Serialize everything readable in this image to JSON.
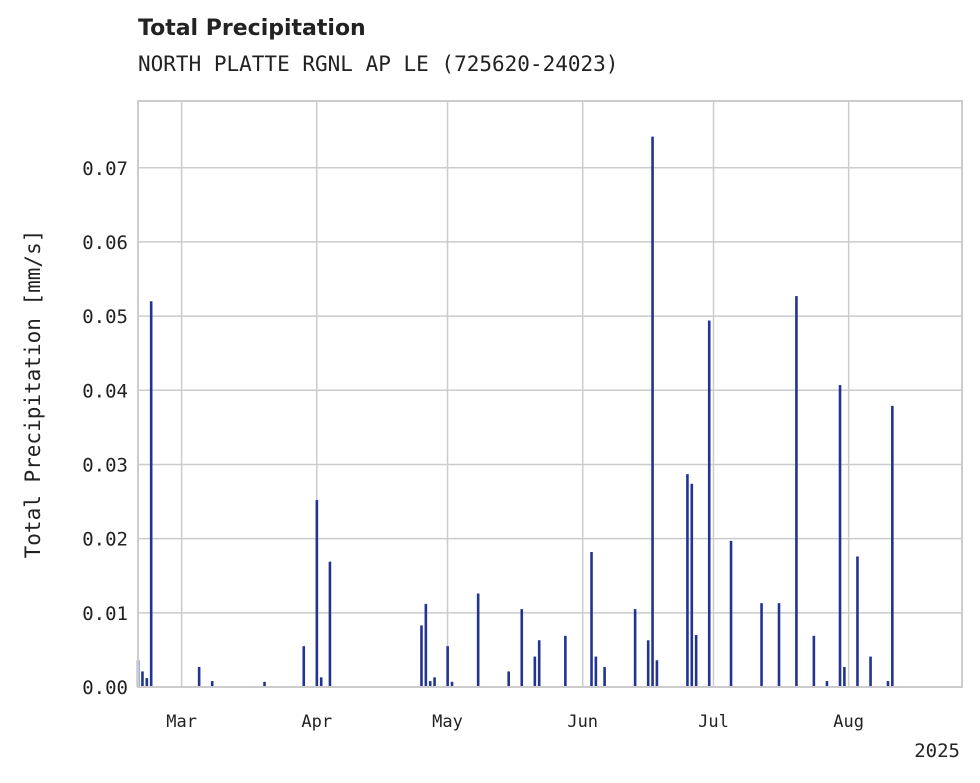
{
  "chart_data": {
    "type": "bar",
    "title": "Total Precipitation",
    "subtitle": "NORTH PLATTE RGNL AP LE (725620-24023)",
    "ylabel": "Total Precipitation [mm/s]",
    "xlabel": "",
    "year_label": "2025",
    "ylim": [
      0,
      0.079
    ],
    "yticks": [
      "0.00",
      "0.01",
      "0.02",
      "0.03",
      "0.04",
      "0.05",
      "0.06",
      "0.07"
    ],
    "xlim": [
      "2025-02-19",
      "2025-08-27"
    ],
    "xticks": [
      {
        "label": "Mar",
        "date": "2025-03-01"
      },
      {
        "label": "Apr",
        "date": "2025-04-01"
      },
      {
        "label": "May",
        "date": "2025-05-01"
      },
      {
        "label": "Jun",
        "date": "2025-06-01"
      },
      {
        "label": "Jul",
        "date": "2025-07-01"
      },
      {
        "label": "Aug",
        "date": "2025-08-01"
      }
    ],
    "grid": true,
    "color": "#233392",
    "x": [
      "2025-02-19",
      "2025-02-20",
      "2025-02-21",
      "2025-02-22",
      "2025-03-05",
      "2025-03-08",
      "2025-03-20",
      "2025-03-29",
      "2025-04-01",
      "2025-04-02",
      "2025-04-04",
      "2025-04-25",
      "2025-04-26",
      "2025-04-27",
      "2025-04-28",
      "2025-05-01",
      "2025-05-02",
      "2025-05-08",
      "2025-05-15",
      "2025-05-18",
      "2025-05-21",
      "2025-05-22",
      "2025-05-28",
      "2025-06-03",
      "2025-06-04",
      "2025-06-06",
      "2025-06-13",
      "2025-06-16",
      "2025-06-17",
      "2025-06-18",
      "2025-06-25",
      "2025-06-26",
      "2025-06-27",
      "2025-06-30",
      "2025-07-05",
      "2025-07-12",
      "2025-07-16",
      "2025-07-20",
      "2025-07-24",
      "2025-07-27",
      "2025-07-30",
      "2025-07-31",
      "2025-08-03",
      "2025-08-06",
      "2025-08-10",
      "2025-08-11"
    ],
    "values": [
      0.0036,
      0.0021,
      0.0012,
      0.052,
      0.0027,
      0.0008,
      0.0007,
      0.0055,
      0.0252,
      0.0013,
      0.0169,
      0.0083,
      0.0112,
      0.0008,
      0.0013,
      0.0055,
      0.0007,
      0.0126,
      0.0021,
      0.0105,
      0.0041,
      0.0063,
      0.0069,
      0.0182,
      0.0041,
      0.0027,
      0.0105,
      0.0063,
      0.0742,
      0.0036,
      0.0287,
      0.0274,
      0.007,
      0.0494,
      0.0197,
      0.0113,
      0.0113,
      0.0527,
      0.0069,
      0.0008,
      0.0407,
      0.0027,
      0.0176,
      0.0041,
      0.0008,
      0.0379
    ]
  }
}
